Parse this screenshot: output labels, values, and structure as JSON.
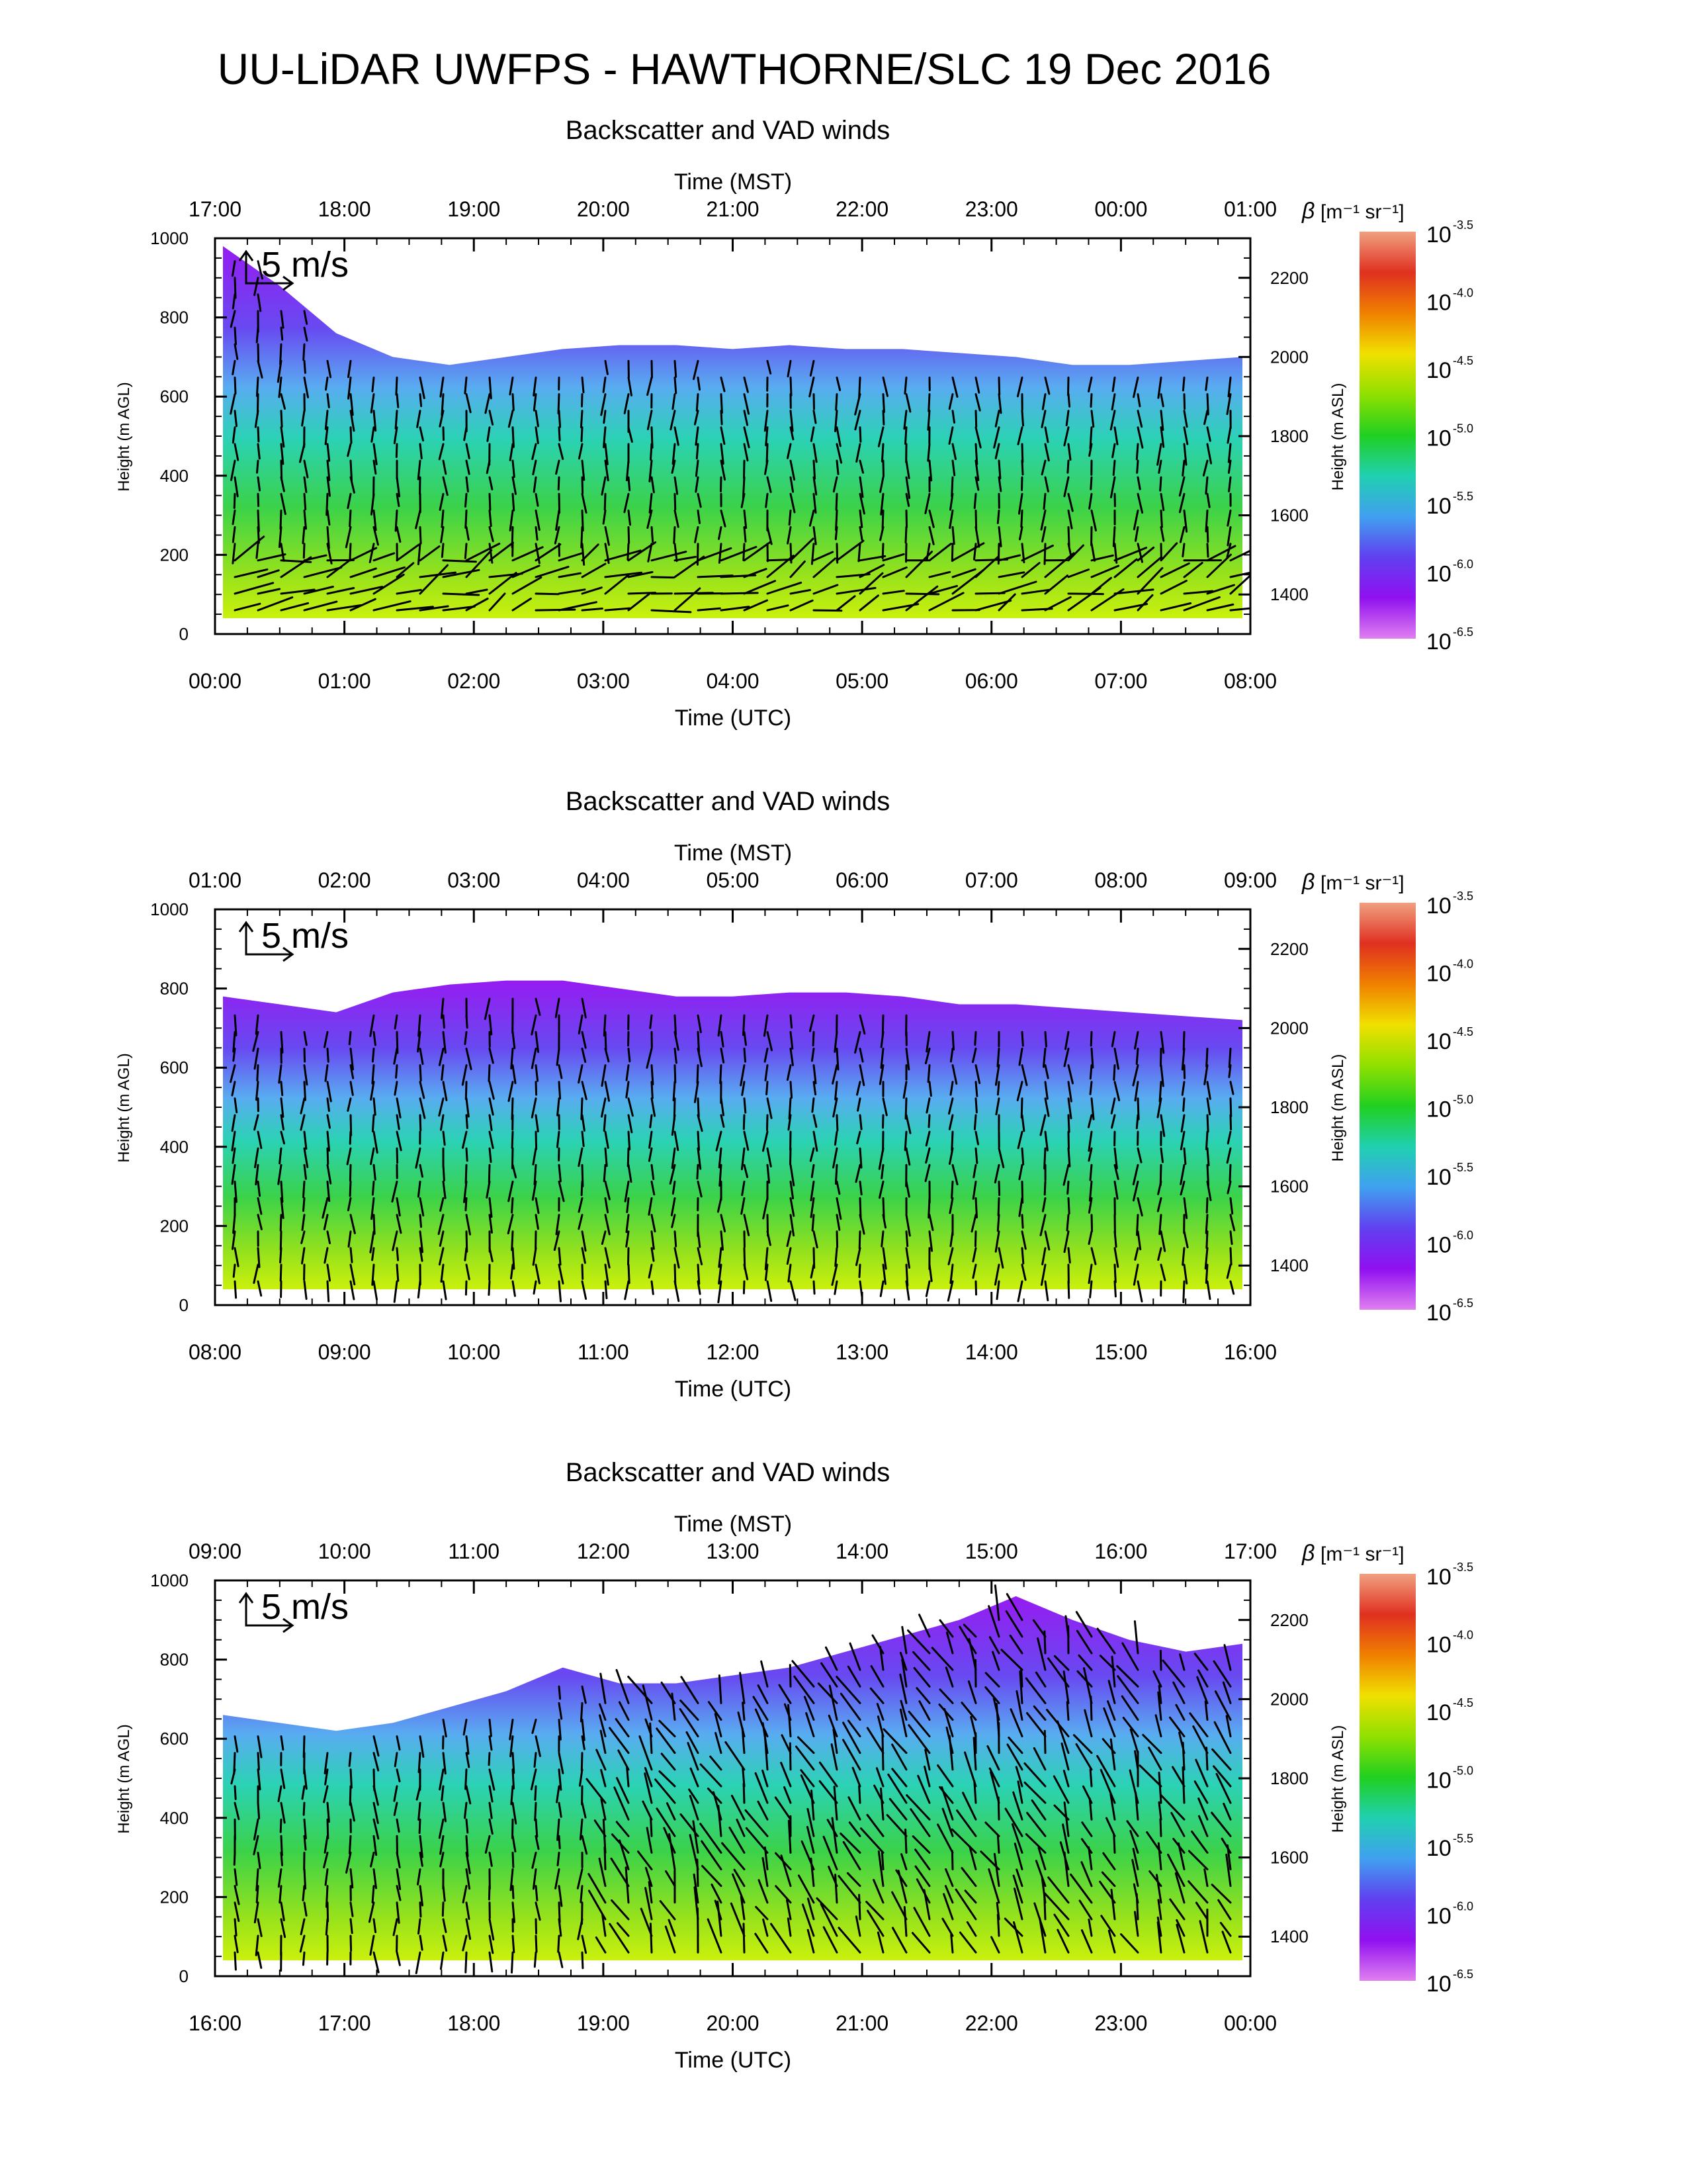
{
  "title": "UU-LiDAR UWFPS - HAWTHORNE/SLC 19 Dec 2016",
  "chart_data": [
    {
      "type": "heatmap",
      "title": "Backscatter and VAD winds",
      "xlabel_top": "Time (MST)",
      "xlabel_bottom": "Time (UTC)",
      "ylabel_left": "Height (m AGL)",
      "ylabel_right": "Height (m ASL)",
      "x_ticks_top": [
        "17:00",
        "18:00",
        "19:00",
        "20:00",
        "21:00",
        "22:00",
        "23:00",
        "00:00",
        "01:00"
      ],
      "x_ticks_bottom": [
        "00:00",
        "01:00",
        "02:00",
        "03:00",
        "04:00",
        "05:00",
        "06:00",
        "07:00",
        "08:00"
      ],
      "y_ticks_left": [
        "0",
        "200",
        "400",
        "600",
        "800",
        "1000"
      ],
      "y_ticks_right": [
        "1400",
        "1600",
        "1800",
        "2000",
        "2200"
      ],
      "ylim": [
        0,
        1000
      ],
      "ylim_asl": [
        1300,
        2300
      ],
      "wind_scale_label": "5 m/s",
      "aerosol_top_m_agl": [
        980,
        880,
        760,
        700,
        680,
        700,
        720,
        730,
        730,
        720,
        730,
        720,
        720,
        710,
        700,
        680,
        680,
        690,
        700
      ],
      "wind_pattern": "strong southerly flow in lower 200 m, northerly above"
    },
    {
      "type": "heatmap",
      "title": "Backscatter and VAD winds",
      "xlabel_top": "Time (MST)",
      "xlabel_bottom": "Time (UTC)",
      "ylabel_left": "Height (m AGL)",
      "ylabel_right": "Height (m ASL)",
      "x_ticks_top": [
        "01:00",
        "02:00",
        "03:00",
        "04:00",
        "05:00",
        "06:00",
        "07:00",
        "08:00",
        "09:00"
      ],
      "x_ticks_bottom": [
        "08:00",
        "09:00",
        "10:00",
        "11:00",
        "12:00",
        "13:00",
        "14:00",
        "15:00",
        "16:00"
      ],
      "y_ticks_left": [
        "0",
        "200",
        "400",
        "600",
        "800",
        "1000"
      ],
      "y_ticks_right": [
        "1400",
        "1600",
        "1800",
        "2000",
        "2200"
      ],
      "ylim": [
        0,
        1000
      ],
      "ylim_asl": [
        1300,
        2300
      ],
      "wind_scale_label": "5 m/s",
      "aerosol_top_m_agl": [
        780,
        760,
        740,
        790,
        810,
        820,
        820,
        800,
        780,
        780,
        790,
        790,
        780,
        760,
        760,
        750,
        740,
        730,
        720
      ],
      "wind_pattern": "northerly winds through the layer"
    },
    {
      "type": "heatmap",
      "title": "Backscatter and VAD winds",
      "xlabel_top": "Time (MST)",
      "xlabel_bottom": "Time (UTC)",
      "ylabel_left": "Height (m AGL)",
      "ylabel_right": "Height (m ASL)",
      "x_ticks_top": [
        "09:00",
        "10:00",
        "11:00",
        "12:00",
        "13:00",
        "14:00",
        "15:00",
        "16:00",
        "17:00"
      ],
      "x_ticks_bottom": [
        "16:00",
        "17:00",
        "18:00",
        "19:00",
        "20:00",
        "21:00",
        "22:00",
        "23:00",
        "00:00"
      ],
      "y_ticks_left": [
        "0",
        "200",
        "400",
        "600",
        "800",
        "1000"
      ],
      "y_ticks_right": [
        "1400",
        "1600",
        "1800",
        "2000",
        "2200"
      ],
      "ylim": [
        0,
        1000
      ],
      "ylim_asl": [
        1300,
        2300
      ],
      "wind_scale_label": "5 m/s",
      "aerosol_top_m_agl": [
        660,
        640,
        620,
        640,
        680,
        720,
        780,
        740,
        740,
        760,
        780,
        820,
        860,
        900,
        960,
        900,
        850,
        820,
        840
      ],
      "wind_pattern": "northerly winds deepening and strengthening in afternoon"
    }
  ],
  "colorbar": {
    "label_symbol": "β",
    "label_units": "[m⁻¹ sr⁻¹]",
    "base": "10",
    "exponents": [
      "-3.5",
      "-4.0",
      "-4.5",
      "-5.0",
      "-5.5",
      "-6.0",
      "-6.5"
    ],
    "colors": [
      "#f0a080",
      "#e03020",
      "#f08000",
      "#f0e000",
      "#90e000",
      "#20d020",
      "#20d0b0",
      "#40a0f0",
      "#6040f0",
      "#9010f0",
      "#e080f0"
    ]
  }
}
